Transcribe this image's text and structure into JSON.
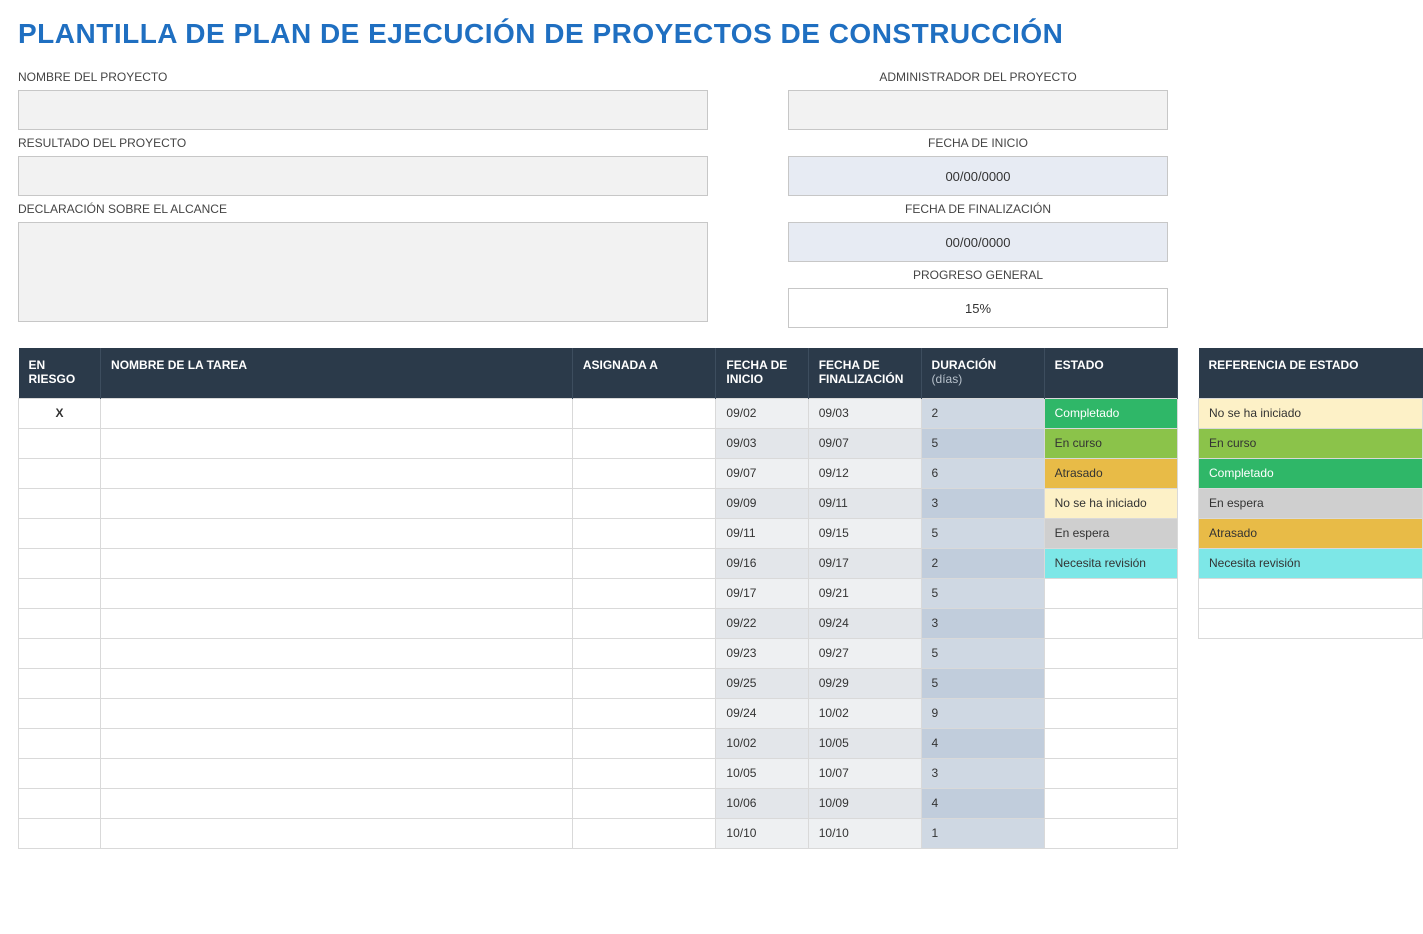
{
  "title": "PLANTILLA DE PLAN DE EJECUCIÓN DE PROYECTOS DE CONSTRUCCIÓN",
  "labels": {
    "project_name": "NOMBRE DEL PROYECTO",
    "project_result": "RESULTADO DEL PROYECTO",
    "scope_statement": "DECLARACIÓN SOBRE EL ALCANCE",
    "project_admin": "ADMINISTRADOR DEL PROYECTO",
    "start_date": "FECHA DE INICIO",
    "end_date": "FECHA DE FINALIZACIÓN",
    "overall_progress": "PROGRESO GENERAL"
  },
  "values": {
    "project_name": "",
    "project_result": "",
    "scope_statement": "",
    "project_admin": "",
    "start_date": "00/00/0000",
    "end_date": "00/00/0000",
    "overall_progress": "15%"
  },
  "task_table": {
    "headers": {
      "risk": "EN RIESGO",
      "task_name": "NOMBRE DE LA TAREA",
      "assigned": "ASIGNADA A",
      "start": "FECHA DE INICIO",
      "end": "FECHA DE FINALIZACIÓN",
      "duration": "DURACIÓN",
      "duration_sub": "(días)",
      "status": "ESTADO"
    },
    "rows": [
      {
        "risk": "X",
        "name": "",
        "assigned": "",
        "start": "09/02",
        "end": "09/03",
        "duration": "2",
        "status": "Completado",
        "status_bg": "#2fb768",
        "status_fg": "#ffffff"
      },
      {
        "risk": "",
        "name": "",
        "assigned": "",
        "start": "09/03",
        "end": "09/07",
        "duration": "5",
        "status": "En curso",
        "status_bg": "#8bc34a",
        "status_fg": "#333333"
      },
      {
        "risk": "",
        "name": "",
        "assigned": "",
        "start": "09/07",
        "end": "09/12",
        "duration": "6",
        "status": "Atrasado",
        "status_bg": "#e8bb47",
        "status_fg": "#333333"
      },
      {
        "risk": "",
        "name": "",
        "assigned": "",
        "start": "09/09",
        "end": "09/11",
        "duration": "3",
        "status": "No se ha iniciado",
        "status_bg": "#fdf1c7",
        "status_fg": "#333333"
      },
      {
        "risk": "",
        "name": "",
        "assigned": "",
        "start": "09/11",
        "end": "09/15",
        "duration": "5",
        "status": "En espera",
        "status_bg": "#cfcfcf",
        "status_fg": "#333333"
      },
      {
        "risk": "",
        "name": "",
        "assigned": "",
        "start": "09/16",
        "end": "09/17",
        "duration": "2",
        "status": "Necesita revisión",
        "status_bg": "#7de7e7",
        "status_fg": "#333333"
      },
      {
        "risk": "",
        "name": "",
        "assigned": "",
        "start": "09/17",
        "end": "09/21",
        "duration": "5",
        "status": "",
        "status_bg": "#ffffff",
        "status_fg": "#333333"
      },
      {
        "risk": "",
        "name": "",
        "assigned": "",
        "start": "09/22",
        "end": "09/24",
        "duration": "3",
        "status": "",
        "status_bg": "#ffffff",
        "status_fg": "#333333"
      },
      {
        "risk": "",
        "name": "",
        "assigned": "",
        "start": "09/23",
        "end": "09/27",
        "duration": "5",
        "status": "",
        "status_bg": "#ffffff",
        "status_fg": "#333333"
      },
      {
        "risk": "",
        "name": "",
        "assigned": "",
        "start": "09/25",
        "end": "09/29",
        "duration": "5",
        "status": "",
        "status_bg": "#ffffff",
        "status_fg": "#333333"
      },
      {
        "risk": "",
        "name": "",
        "assigned": "",
        "start": "09/24",
        "end": "10/02",
        "duration": "9",
        "status": "",
        "status_bg": "#ffffff",
        "status_fg": "#333333"
      },
      {
        "risk": "",
        "name": "",
        "assigned": "",
        "start": "10/02",
        "end": "10/05",
        "duration": "4",
        "status": "",
        "status_bg": "#ffffff",
        "status_fg": "#333333"
      },
      {
        "risk": "",
        "name": "",
        "assigned": "",
        "start": "10/05",
        "end": "10/07",
        "duration": "3",
        "status": "",
        "status_bg": "#ffffff",
        "status_fg": "#333333"
      },
      {
        "risk": "",
        "name": "",
        "assigned": "",
        "start": "10/06",
        "end": "10/09",
        "duration": "4",
        "status": "",
        "status_bg": "#ffffff",
        "status_fg": "#333333"
      },
      {
        "risk": "",
        "name": "",
        "assigned": "",
        "start": "10/10",
        "end": "10/10",
        "duration": "1",
        "status": "",
        "status_bg": "#ffffff",
        "status_fg": "#333333"
      }
    ]
  },
  "legend": {
    "header": "REFERENCIA DE ESTADO",
    "items": [
      {
        "label": "No se ha iniciado",
        "bg": "#fdf1c7",
        "fg": "#333333"
      },
      {
        "label": "En curso",
        "bg": "#8bc34a",
        "fg": "#333333"
      },
      {
        "label": "Completado",
        "bg": "#2fb768",
        "fg": "#ffffff"
      },
      {
        "label": "En espera",
        "bg": "#cfcfcf",
        "fg": "#333333"
      },
      {
        "label": "Atrasado",
        "bg": "#e8bb47",
        "fg": "#333333"
      },
      {
        "label": "Necesita revisión",
        "bg": "#7de7e7",
        "fg": "#333333"
      },
      {
        "label": "",
        "bg": "#ffffff",
        "fg": "#333333"
      },
      {
        "label": "",
        "bg": "#ffffff",
        "fg": "#333333"
      }
    ]
  }
}
